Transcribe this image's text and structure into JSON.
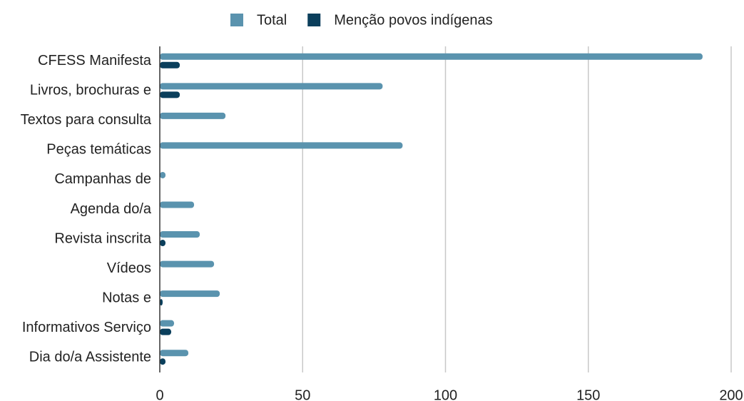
{
  "chart_data": {
    "type": "barh",
    "categories": [
      "CFESS Manifesta",
      "Livros, brochuras e",
      "Textos para consulta",
      "Peças temáticas",
      "Campanhas de",
      "Agenda do/a",
      "Revista inscrita",
      "Vídeos",
      "Notas e",
      "Informativos Serviço",
      "Dia do/a Assistente"
    ],
    "series": [
      {
        "name": "Total",
        "color": "#5a93ae",
        "values": [
          190,
          78,
          23,
          85,
          2,
          12,
          14,
          19,
          21,
          5,
          10
        ]
      },
      {
        "name": "Menção povos indígenas",
        "color": "#0b3f5c",
        "values": [
          7,
          7,
          0,
          0,
          0,
          0,
          2,
          0,
          1,
          4,
          2
        ]
      }
    ],
    "xlim": [
      0,
      200
    ],
    "xticks": [
      0,
      50,
      100,
      150,
      200
    ],
    "grid": true,
    "legend": "top"
  }
}
